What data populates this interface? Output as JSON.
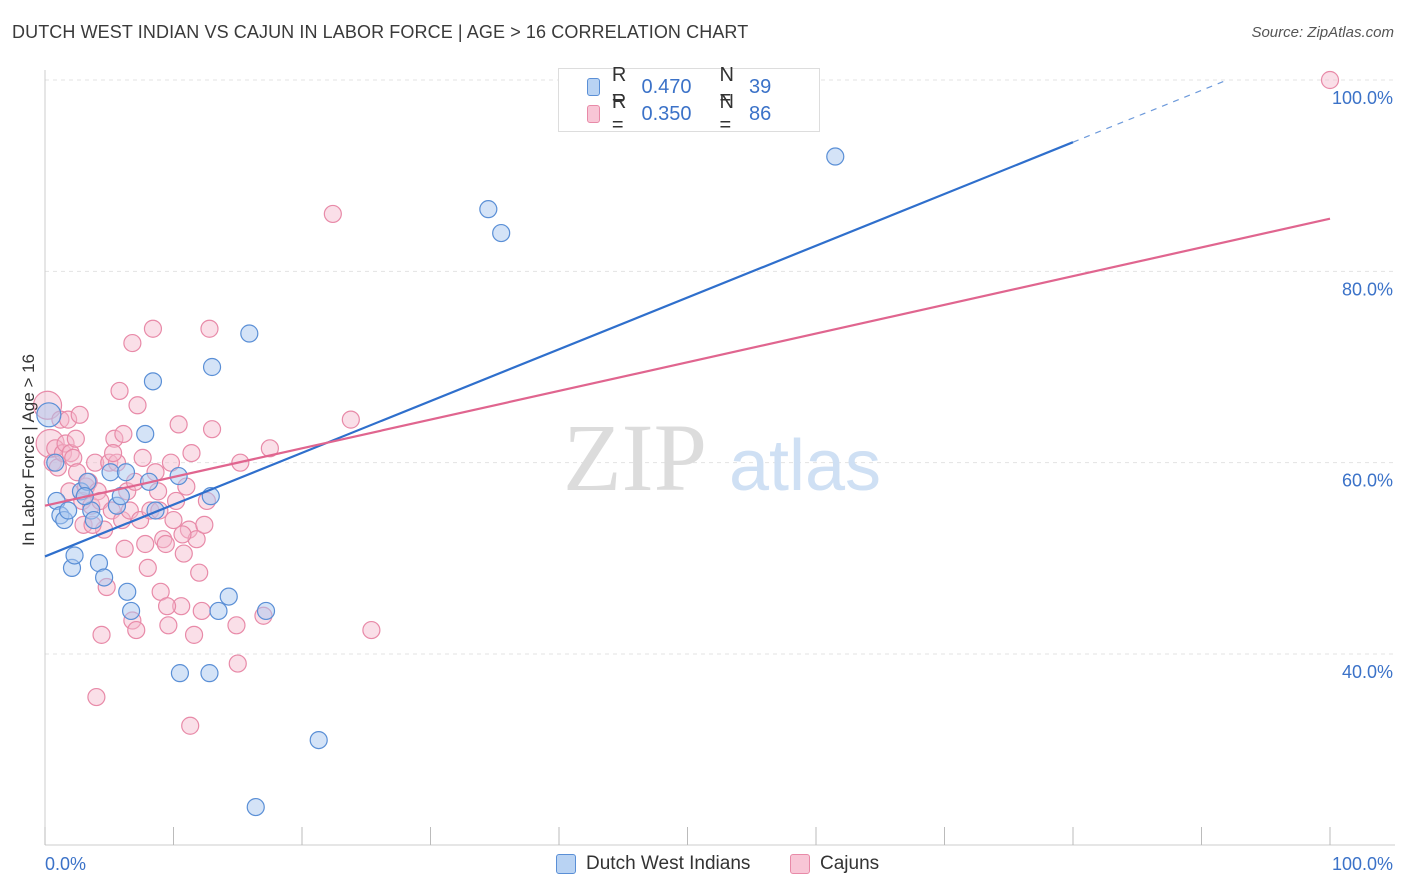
{
  "title": "DUTCH WEST INDIAN VS CAJUN IN LABOR FORCE | AGE > 16 CORRELATION CHART",
  "source": "Source: ZipAtlas.com",
  "watermark": {
    "zip": "ZIP",
    "atlas": "atlas"
  },
  "legend": {
    "rows": [
      {
        "r_label": "R =",
        "r_value": "0.470",
        "n_label": "N =",
        "n_value": "39"
      },
      {
        "r_label": "R =",
        "r_value": "0.350",
        "n_label": "N =",
        "n_value": "86"
      }
    ]
  },
  "bottom_legend": [
    "Dutch West Indians",
    "Cajuns"
  ],
  "colors": {
    "blue_fill": "#aac8f0",
    "blue_stroke": "#5a8fd6",
    "blue_line": "#2f6fcc",
    "pink_fill": "#f5b8cc",
    "pink_stroke": "#e88aa8",
    "pink_line": "#e0658f",
    "axis_text": "#3b72c8"
  },
  "chart_data": {
    "type": "scatter",
    "title": "DUTCH WEST INDIAN VS CAJUN IN LABOR FORCE | AGE > 16 CORRELATION CHART",
    "xlabel": "",
    "ylabel": "In Labor Force | Age > 16",
    "xlim": [
      0,
      100
    ],
    "ylim": [
      20,
      102
    ],
    "x_tick_labels": [
      "0.0%",
      "100.0%"
    ],
    "y_ticks": [
      40,
      60,
      80,
      100
    ],
    "y_tick_labels": [
      "40.0%",
      "60.0%",
      "80.0%",
      "100.0%"
    ],
    "series": [
      {
        "name": "Dutch West Indians",
        "R": 0.47,
        "N": 39,
        "trend": {
          "x0": 0,
          "y0": 50.2,
          "x1": 80,
          "y1": 93.5,
          "dash_to_x": 92,
          "dash_to_y": 100
        },
        "points": [
          [
            0.3,
            65
          ],
          [
            0.8,
            60
          ],
          [
            0.9,
            56
          ],
          [
            1.2,
            54.5
          ],
          [
            1.5,
            54
          ],
          [
            1.8,
            55
          ],
          [
            2.1,
            49
          ],
          [
            2.3,
            50.3
          ],
          [
            2.8,
            57
          ],
          [
            3.3,
            58
          ],
          [
            3.6,
            55
          ],
          [
            3.8,
            54
          ],
          [
            4.2,
            49.5
          ],
          [
            4.6,
            48
          ],
          [
            5.1,
            59
          ],
          [
            5.6,
            55.5
          ],
          [
            5.9,
            56.5
          ],
          [
            6.3,
            59
          ],
          [
            6.4,
            46.5
          ],
          [
            6.7,
            44.5
          ],
          [
            7.8,
            63
          ],
          [
            8.1,
            58
          ],
          [
            8.4,
            68.5
          ],
          [
            8.6,
            55
          ],
          [
            10.4,
            58.6
          ],
          [
            10.5,
            38
          ],
          [
            12.8,
            38
          ],
          [
            12.9,
            56.5
          ],
          [
            13.0,
            70
          ],
          [
            13.5,
            44.5
          ],
          [
            14.3,
            46
          ],
          [
            15.9,
            73.5
          ],
          [
            16.4,
            24
          ],
          [
            17.2,
            44.5
          ],
          [
            21.3,
            31
          ],
          [
            34.5,
            86.5
          ],
          [
            35.5,
            84
          ],
          [
            61.5,
            92
          ],
          [
            3.1,
            56.5
          ]
        ]
      },
      {
        "name": "Cajuns",
        "R": 0.35,
        "N": 86,
        "trend": {
          "x0": 0,
          "y0": 55.5,
          "x1": 100,
          "y1": 85.5
        },
        "points": [
          [
            0.2,
            66
          ],
          [
            0.4,
            62
          ],
          [
            0.6,
            60
          ],
          [
            0.8,
            61.5
          ],
          [
            1.0,
            59.5
          ],
          [
            1.2,
            64.5
          ],
          [
            1.4,
            61
          ],
          [
            1.6,
            62
          ],
          [
            1.8,
            64.5
          ],
          [
            2.0,
            61
          ],
          [
            2.2,
            60.5
          ],
          [
            2.5,
            59
          ],
          [
            2.7,
            65
          ],
          [
            2.9,
            56
          ],
          [
            3.0,
            53.5
          ],
          [
            3.2,
            57.5
          ],
          [
            3.4,
            58
          ],
          [
            3.6,
            55.5
          ],
          [
            3.9,
            60
          ],
          [
            4.1,
            57
          ],
          [
            4.3,
            56
          ],
          [
            4.4,
            42
          ],
          [
            4.6,
            53
          ],
          [
            4.8,
            47
          ],
          [
            5.0,
            60
          ],
          [
            5.2,
            55
          ],
          [
            5.4,
            62.5
          ],
          [
            5.6,
            60
          ],
          [
            5.8,
            67.5
          ],
          [
            6.0,
            54
          ],
          [
            6.2,
            51
          ],
          [
            6.4,
            57
          ],
          [
            6.6,
            55
          ],
          [
            6.8,
            72.5
          ],
          [
            7.0,
            58
          ],
          [
            7.2,
            66
          ],
          [
            7.4,
            54
          ],
          [
            7.6,
            60.5
          ],
          [
            7.8,
            51.5
          ],
          [
            8.0,
            49
          ],
          [
            8.2,
            55
          ],
          [
            8.4,
            74
          ],
          [
            8.6,
            59
          ],
          [
            8.8,
            57
          ],
          [
            9.0,
            46.5
          ],
          [
            9.2,
            52
          ],
          [
            9.4,
            51.5
          ],
          [
            9.6,
            43
          ],
          [
            9.8,
            60
          ],
          [
            10.0,
            54
          ],
          [
            10.2,
            56
          ],
          [
            10.4,
            64
          ],
          [
            10.6,
            45
          ],
          [
            10.8,
            50.5
          ],
          [
            11.0,
            57.5
          ],
          [
            11.2,
            53
          ],
          [
            11.4,
            61
          ],
          [
            11.6,
            42
          ],
          [
            11.8,
            52
          ],
          [
            12.0,
            48.5
          ],
          [
            12.2,
            44.5
          ],
          [
            12.4,
            53.5
          ],
          [
            12.6,
            56
          ],
          [
            12.8,
            74
          ],
          [
            13.0,
            63.5
          ],
          [
            14.9,
            43
          ],
          [
            15.0,
            39
          ],
          [
            15.2,
            60
          ],
          [
            17.0,
            44
          ],
          [
            17.5,
            61.5
          ],
          [
            22.4,
            86
          ],
          [
            23.8,
            64.5
          ],
          [
            25.4,
            42.5
          ],
          [
            100,
            100
          ],
          [
            9.5,
            45
          ],
          [
            11.3,
            32.5
          ],
          [
            6.8,
            43.5
          ],
          [
            4.0,
            35.5
          ],
          [
            2.4,
            62.5
          ],
          [
            7.1,
            42.5
          ],
          [
            5.3,
            61
          ],
          [
            3.7,
            53.5
          ],
          [
            8.9,
            55
          ],
          [
            10.7,
            52.5
          ],
          [
            1.9,
            57
          ],
          [
            6.1,
            63
          ]
        ]
      }
    ]
  }
}
